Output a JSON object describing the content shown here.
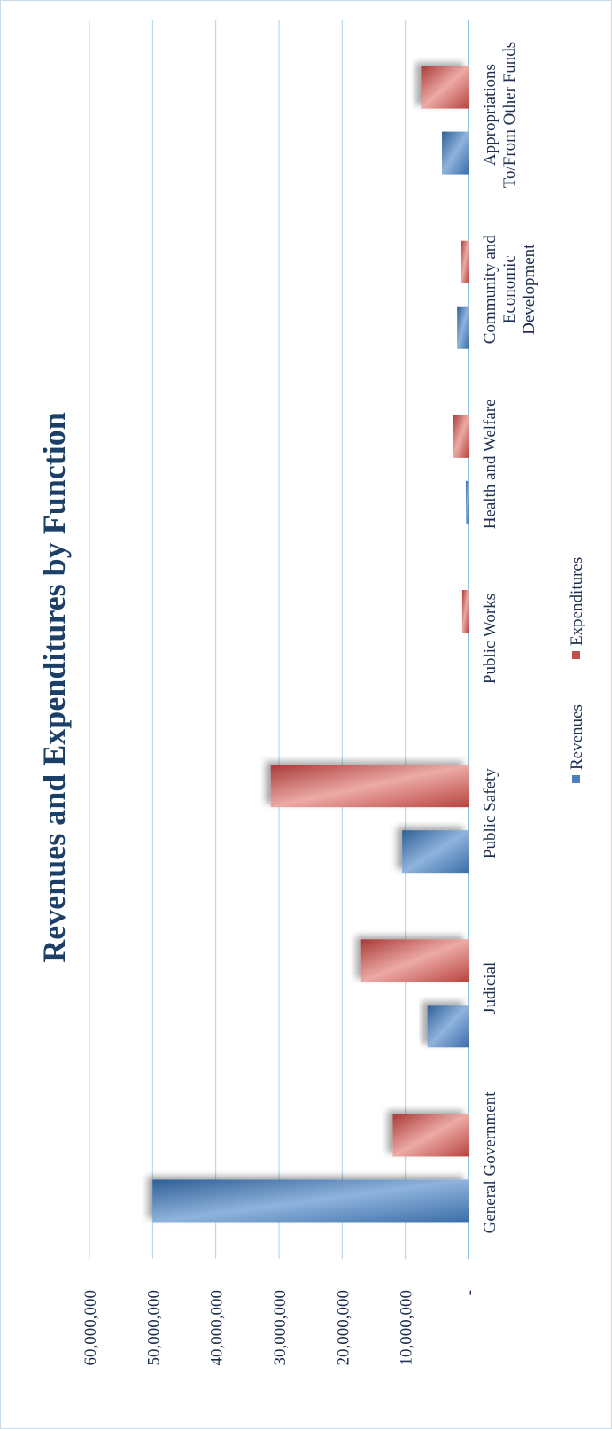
{
  "chart_data": {
    "type": "bar",
    "title": "Revenues and Expenditures by Function",
    "categories": [
      "General Government",
      "Judicial",
      "Public Safety",
      "Public Works",
      "Health and Welfare",
      "Community and Economic Development",
      "Appropriations To/From Other Funds"
    ],
    "series": [
      {
        "name": "Revenues",
        "values": [
          50000000,
          6500000,
          10500000,
          0,
          400000,
          1800000,
          4200000
        ]
      },
      {
        "name": "Expenditures",
        "values": [
          12000000,
          17000000,
          31300000,
          1000000,
          2500000,
          1200000,
          7500000
        ]
      }
    ],
    "ylim": [
      0,
      60000000
    ],
    "yticks": [
      "-",
      "10,000,000",
      "20,000,000",
      "30,000,000",
      "40,000,000",
      "50,000,000",
      "60,000,000"
    ],
    "grid": true,
    "legend": "bottom",
    "orientation": "rotated",
    "colors": {
      "Revenues": "#4f81bd",
      "Expenditures": "#c0504d",
      "grid": "#a9d3ea",
      "title": "#1b3f66",
      "text": "#1f2f4f"
    }
  }
}
